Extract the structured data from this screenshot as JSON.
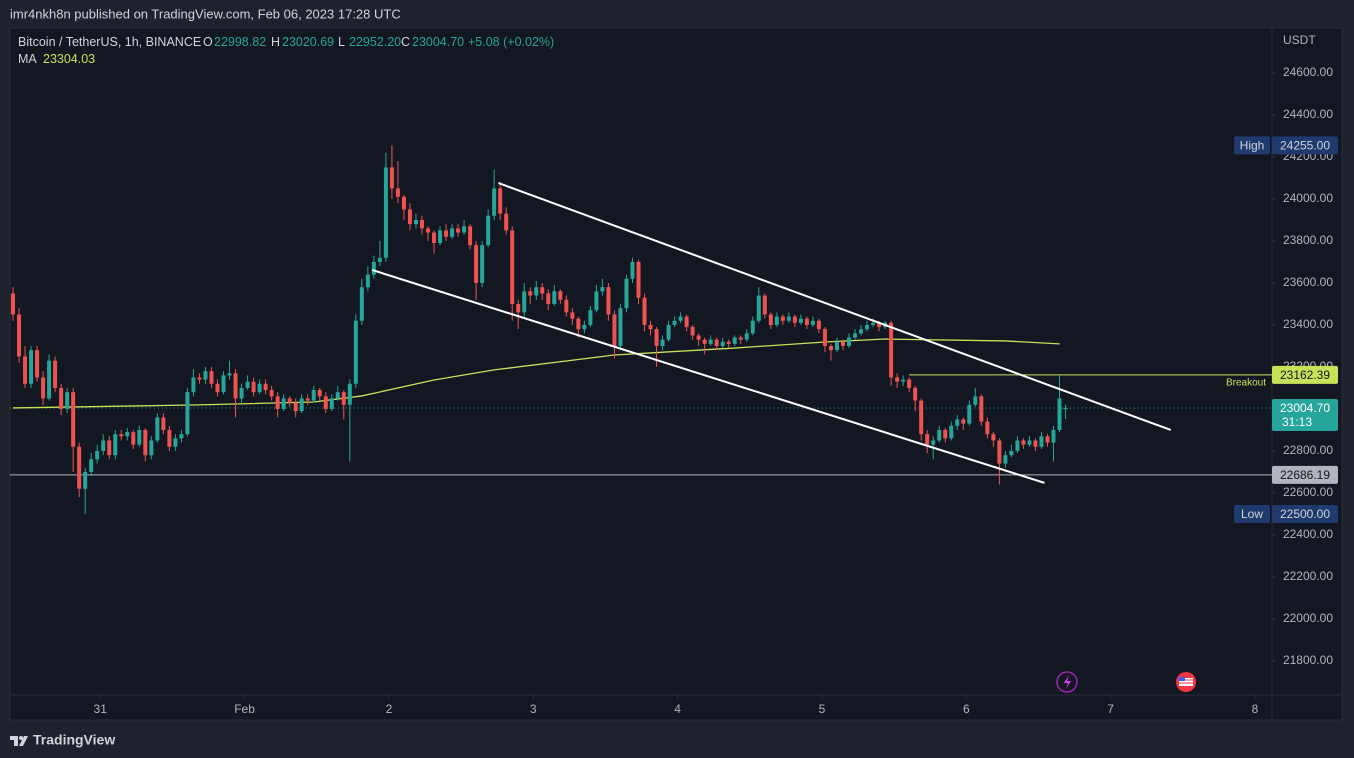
{
  "header": {
    "publisher": "imr4nkh8n published on TradingView.com, Feb 06, 2023 17:28 UTC",
    "brand": "TradingView"
  },
  "chart_data": {
    "type": "candlestick",
    "symbol": "Bitcoin / TetherUS, 1h, BINANCE",
    "currency": "USDT",
    "legend": {
      "o_label": "O",
      "o": "22998.82",
      "h_label": "H",
      "h": "23020.69",
      "l_label": "L",
      "l": "22952.20",
      "c_label": "C",
      "c": "23004.70",
      "change": "+5.08 (+0.02%)",
      "ma_label": "MA",
      "ma": "23304.03"
    },
    "up_color": "#26a69a",
    "down_color": "#ef5350",
    "ma_color": "#c8e35a",
    "xlim": [
      -0.5,
      209.33
    ],
    "ylim": [
      21638,
      24814
    ],
    "xticks": [
      {
        "value": 14.5,
        "label": "31"
      },
      {
        "value": 38.5,
        "label": "Feb"
      },
      {
        "value": 62.5,
        "label": "2"
      },
      {
        "value": 86.5,
        "label": "3"
      },
      {
        "value": 110.5,
        "label": "4"
      },
      {
        "value": 134.5,
        "label": "5"
      },
      {
        "value": 158.5,
        "label": "6"
      },
      {
        "value": 182.5,
        "label": "7"
      },
      {
        "value": 206.5,
        "label": "8"
      }
    ],
    "yticks": [
      {
        "value": 21800,
        "label": "21800.00"
      },
      {
        "value": 22000,
        "label": "22000.00"
      },
      {
        "value": 22200,
        "label": "22200.00"
      },
      {
        "value": 22400,
        "label": "22400.00"
      },
      {
        "value": 22600,
        "label": "22600.00"
      },
      {
        "value": 22800,
        "label": "22800.00"
      },
      {
        "value": 23000,
        "label": "23000.00"
      },
      {
        "value": 23200,
        "label": "23200.00"
      },
      {
        "value": 23400,
        "label": "23400.00"
      },
      {
        "value": 23600,
        "label": "23600.00"
      },
      {
        "value": 23800,
        "label": "23800.00"
      },
      {
        "value": 24000,
        "label": "24000.00"
      },
      {
        "value": 24200,
        "label": "24200.00"
      },
      {
        "value": 24400,
        "label": "24400.00"
      },
      {
        "value": 24600,
        "label": "24600.00"
      }
    ],
    "high": {
      "label": "High",
      "value": 24255,
      "value_label": "24255.00"
    },
    "low": {
      "label": "Low",
      "value": 22500,
      "value_label": "22500.00"
    },
    "last_price": 23004.7,
    "countdown": "31:13",
    "levels": [
      {
        "value": 23162.39,
        "label": "Breakout",
        "x_start": 149,
        "color": "#c8e35a"
      },
      {
        "value": 22686.19,
        "x_start": -0.5,
        "color": "#b2b5be"
      }
    ],
    "ma_line": {
      "x": [
        0,
        30,
        50,
        58,
        70,
        80,
        100,
        120,
        135,
        145,
        165,
        174
      ],
      "values": [
        23005,
        23019,
        23033,
        23062,
        23138,
        23186,
        23257,
        23290,
        23319,
        23333,
        23324,
        23310
      ]
    },
    "trendlines": [
      {
        "x": [
          80.7,
          192.5
        ],
        "values": [
          24076,
          22900
        ]
      },
      {
        "x": [
          59.7,
          171.5
        ],
        "values": [
          23662,
          22648
        ]
      }
    ],
    "ohlc": [
      [
        23550,
        23580,
        23420,
        23450
      ],
      [
        23450,
        23480,
        23220,
        23250
      ],
      [
        23250,
        23300,
        23100,
        23120
      ],
      [
        23120,
        23300,
        23100,
        23280
      ],
      [
        23280,
        23300,
        23130,
        23150
      ],
      [
        23150,
        23180,
        23020,
        23050
      ],
      [
        23050,
        23260,
        23040,
        23230
      ],
      [
        23230,
        23250,
        23080,
        23100
      ],
      [
        23100,
        23120,
        22970,
        23000
      ],
      [
        23000,
        23100,
        22980,
        23080
      ],
      [
        23080,
        23100,
        22700,
        22820
      ],
      [
        22820,
        22840,
        22580,
        22620
      ],
      [
        22620,
        22720,
        22500,
        22700
      ],
      [
        22700,
        22790,
        22680,
        22760
      ],
      [
        22760,
        22830,
        22740,
        22800
      ],
      [
        22800,
        22880,
        22780,
        22850
      ],
      [
        22850,
        22870,
        22760,
        22780
      ],
      [
        22780,
        22900,
        22760,
        22880
      ],
      [
        22880,
        22900,
        22850,
        22870
      ],
      [
        22870,
        22910,
        22850,
        22890
      ],
      [
        22890,
        22900,
        22810,
        22830
      ],
      [
        22830,
        22920,
        22820,
        22900
      ],
      [
        22900,
        22910,
        22750,
        22780
      ],
      [
        22780,
        22870,
        22760,
        22850
      ],
      [
        22850,
        22980,
        22840,
        22960
      ],
      [
        22960,
        22980,
        22880,
        22900
      ],
      [
        22900,
        22920,
        22800,
        22820
      ],
      [
        22820,
        22880,
        22800,
        22860
      ],
      [
        22860,
        22900,
        22840,
        22880
      ],
      [
        22880,
        23100,
        22870,
        23080
      ],
      [
        23080,
        23190,
        23060,
        23150
      ],
      [
        23150,
        23170,
        23120,
        23140
      ],
      [
        23140,
        23200,
        23120,
        23180
      ],
      [
        23180,
        23200,
        23100,
        23120
      ],
      [
        23120,
        23140,
        23060,
        23080
      ],
      [
        23080,
        23180,
        23070,
        23160
      ],
      [
        23160,
        23230,
        23140,
        23170
      ],
      [
        23170,
        23190,
        22960,
        23050
      ],
      [
        23050,
        23120,
        23030,
        23100
      ],
      [
        23100,
        23160,
        23090,
        23130
      ],
      [
        23130,
        23150,
        23060,
        23080
      ],
      [
        23080,
        23140,
        23070,
        23120
      ],
      [
        23120,
        23140,
        23070,
        23090
      ],
      [
        23090,
        23110,
        23040,
        23060
      ],
      [
        23060,
        23080,
        22960,
        23000
      ],
      [
        23000,
        23070,
        22990,
        23050
      ],
      [
        23050,
        23060,
        23010,
        23030
      ],
      [
        23030,
        23050,
        22960,
        22990
      ],
      [
        22990,
        23070,
        22980,
        23050
      ],
      [
        23050,
        23070,
        23020,
        23040
      ],
      [
        23040,
        23110,
        23030,
        23090
      ],
      [
        23090,
        23100,
        23040,
        23060
      ],
      [
        23060,
        23080,
        22980,
        23000
      ],
      [
        23000,
        23070,
        22990,
        23050
      ],
      [
        23050,
        23110,
        23040,
        23080
      ],
      [
        23080,
        23090,
        22950,
        23020
      ],
      [
        23020,
        23140,
        22750,
        23120
      ],
      [
        23120,
        23450,
        23100,
        23420
      ],
      [
        23420,
        23620,
        23400,
        23580
      ],
      [
        23580,
        23680,
        23560,
        23640
      ],
      [
        23640,
        23730,
        23620,
        23700
      ],
      [
        23700,
        23800,
        23680,
        23720
      ],
      [
        23720,
        24220,
        23700,
        24150
      ],
      [
        24150,
        24255,
        24000,
        24050
      ],
      [
        24050,
        24180,
        23980,
        24010
      ],
      [
        24010,
        24020,
        23900,
        23950
      ],
      [
        23950,
        23980,
        23850,
        23880
      ],
      [
        23880,
        23930,
        23860,
        23900
      ],
      [
        23900,
        23920,
        23830,
        23860
      ],
      [
        23860,
        23870,
        23800,
        23840
      ],
      [
        23840,
        23850,
        23740,
        23790
      ],
      [
        23790,
        23870,
        23780,
        23850
      ],
      [
        23850,
        23880,
        23800,
        23820
      ],
      [
        23820,
        23880,
        23810,
        23860
      ],
      [
        23860,
        23880,
        23820,
        23840
      ],
      [
        23840,
        23900,
        23830,
        23870
      ],
      [
        23870,
        23880,
        23760,
        23780
      ],
      [
        23780,
        23800,
        23520,
        23600
      ],
      [
        23600,
        23800,
        23580,
        23780
      ],
      [
        23780,
        23950,
        23770,
        23920
      ],
      [
        23920,
        24140,
        23900,
        24050
      ],
      [
        24050,
        24080,
        23900,
        23930
      ],
      [
        23930,
        23960,
        23830,
        23850
      ],
      [
        23850,
        23870,
        23420,
        23500
      ],
      [
        23500,
        23520,
        23380,
        23460
      ],
      [
        23460,
        23600,
        23440,
        23560
      ],
      [
        23560,
        23580,
        23500,
        23540
      ],
      [
        23540,
        23610,
        23520,
        23580
      ],
      [
        23580,
        23600,
        23520,
        23550
      ],
      [
        23550,
        23570,
        23470,
        23500
      ],
      [
        23500,
        23590,
        23490,
        23560
      ],
      [
        23560,
        23570,
        23500,
        23520
      ],
      [
        23520,
        23540,
        23440,
        23460
      ],
      [
        23460,
        23480,
        23400,
        23430
      ],
      [
        23430,
        23440,
        23340,
        23380
      ],
      [
        23380,
        23420,
        23360,
        23400
      ],
      [
        23400,
        23490,
        23390,
        23470
      ],
      [
        23470,
        23590,
        23460,
        23560
      ],
      [
        23560,
        23620,
        23540,
        23580
      ],
      [
        23580,
        23600,
        23420,
        23450
      ],
      [
        23450,
        23470,
        23240,
        23300
      ],
      [
        23300,
        23500,
        23280,
        23480
      ],
      [
        23480,
        23640,
        23460,
        23620
      ],
      [
        23620,
        23720,
        23600,
        23700
      ],
      [
        23700,
        23710,
        23500,
        23530
      ],
      [
        23530,
        23550,
        23370,
        23400
      ],
      [
        23400,
        23420,
        23350,
        23380
      ],
      [
        23380,
        23390,
        23200,
        23300
      ],
      [
        23300,
        23350,
        23280,
        23330
      ],
      [
        23330,
        23420,
        23320,
        23400
      ],
      [
        23400,
        23440,
        23390,
        23420
      ],
      [
        23420,
        23460,
        23410,
        23440
      ],
      [
        23440,
        23450,
        23370,
        23390
      ],
      [
        23390,
        23400,
        23330,
        23350
      ],
      [
        23350,
        23360,
        23300,
        23330
      ],
      [
        23330,
        23340,
        23260,
        23310
      ],
      [
        23310,
        23350,
        23300,
        23330
      ],
      [
        23330,
        23340,
        23280,
        23300
      ],
      [
        23300,
        23340,
        23290,
        23320
      ],
      [
        23320,
        23330,
        23290,
        23310
      ],
      [
        23310,
        23350,
        23300,
        23340
      ],
      [
        23340,
        23350,
        23310,
        23330
      ],
      [
        23330,
        23380,
        23320,
        23360
      ],
      [
        23360,
        23440,
        23350,
        23420
      ],
      [
        23420,
        23580,
        23410,
        23540
      ],
      [
        23540,
        23550,
        23430,
        23450
      ],
      [
        23450,
        23460,
        23380,
        23400
      ],
      [
        23400,
        23460,
        23390,
        23440
      ],
      [
        23440,
        23450,
        23400,
        23420
      ],
      [
        23420,
        23460,
        23410,
        23440
      ],
      [
        23440,
        23450,
        23390,
        23410
      ],
      [
        23410,
        23450,
        23400,
        23430
      ],
      [
        23430,
        23440,
        23380,
        23400
      ],
      [
        23400,
        23440,
        23390,
        23420
      ],
      [
        23420,
        23430,
        23360,
        23380
      ],
      [
        23380,
        23390,
        23270,
        23300
      ],
      [
        23300,
        23310,
        23230,
        23280
      ],
      [
        23280,
        23340,
        23270,
        23320
      ],
      [
        23320,
        23330,
        23280,
        23300
      ],
      [
        23300,
        23360,
        23290,
        23340
      ],
      [
        23340,
        23380,
        23330,
        23360
      ],
      [
        23360,
        23400,
        23350,
        23380
      ],
      [
        23380,
        23420,
        23370,
        23400
      ],
      [
        23400,
        23430,
        23390,
        23410
      ],
      [
        23410,
        23420,
        23370,
        23390
      ],
      [
        23390,
        23420,
        23380,
        23410
      ],
      [
        23410,
        23420,
        23110,
        23150
      ],
      [
        23150,
        23170,
        23100,
        23130
      ],
      [
        23130,
        23160,
        23110,
        23140
      ],
      [
        23140,
        23150,
        23080,
        23100
      ],
      [
        23100,
        23110,
        22990,
        23040
      ],
      [
        23040,
        23050,
        22850,
        22880
      ],
      [
        22880,
        22900,
        22790,
        22830
      ],
      [
        22830,
        22870,
        22760,
        22850
      ],
      [
        22850,
        22920,
        22840,
        22900
      ],
      [
        22900,
        22910,
        22840,
        22860
      ],
      [
        22860,
        22940,
        22850,
        22920
      ],
      [
        22920,
        22970,
        22900,
        22950
      ],
      [
        22950,
        22960,
        22900,
        22930
      ],
      [
        22930,
        23040,
        22920,
        23020
      ],
      [
        23020,
        23100,
        23010,
        23060
      ],
      [
        23060,
        23070,
        22920,
        22940
      ],
      [
        22940,
        22960,
        22860,
        22880
      ],
      [
        22880,
        22890,
        22820,
        22850
      ],
      [
        22850,
        22860,
        22640,
        22740
      ],
      [
        22740,
        22800,
        22720,
        22780
      ],
      [
        22780,
        22830,
        22770,
        22800
      ],
      [
        22800,
        22870,
        22790,
        22850
      ],
      [
        22850,
        22860,
        22810,
        22830
      ],
      [
        22830,
        22870,
        22820,
        22850
      ],
      [
        22850,
        22860,
        22800,
        22820
      ],
      [
        22820,
        22890,
        22810,
        22870
      ],
      [
        22870,
        22880,
        22820,
        22840
      ],
      [
        22840,
        22920,
        22750,
        22900
      ],
      [
        22900,
        23160,
        22890,
        23050
      ],
      [
        22998.82,
        23020.69,
        22952.2,
        23004.7
      ]
    ]
  }
}
